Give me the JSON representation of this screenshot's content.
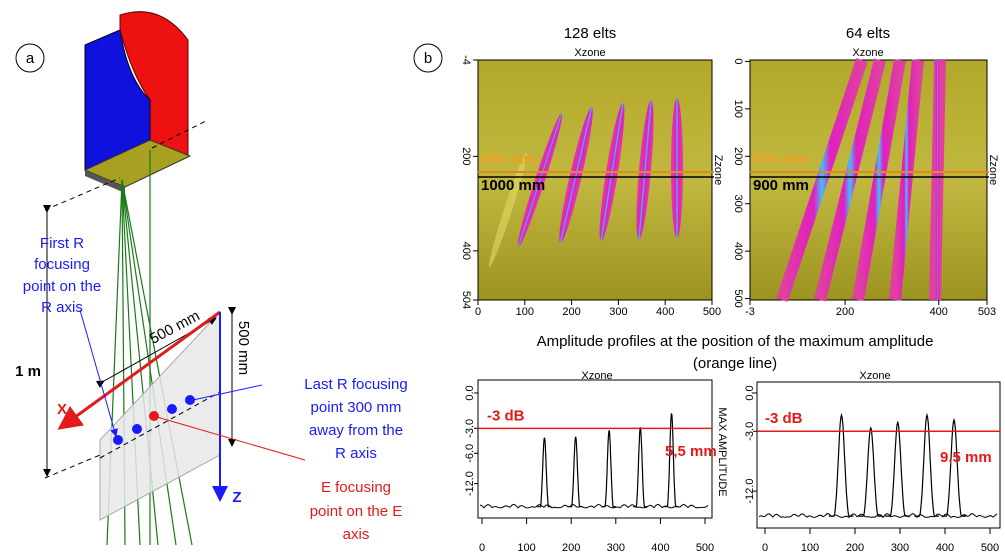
{
  "panel_a": {
    "label": "a",
    "first_r": [
      "First R",
      "focusing",
      "point on the",
      "R axis"
    ],
    "width_label": "500 mm",
    "height_label": "500 mm",
    "distance_label": "1 m",
    "x_axis": "X",
    "z_axis": "Z",
    "last_r": [
      "Last R focusing",
      "point 300 mm",
      "away from the",
      "R axis"
    ],
    "e_point": [
      "E focusing",
      "point on the E",
      "axis"
    ]
  },
  "panel_b": {
    "label": "b",
    "caption": [
      "Amplitude profiles at the position of the maximum amplitude",
      "(orange line)"
    ],
    "heatmaps": [
      {
        "title": "128 elts",
        "x_label": "Xzone",
        "y_label": "Zzone",
        "xlim": [
          0,
          500
        ],
        "xticks": [
          0,
          100,
          200,
          300,
          400,
          500
        ],
        "ylim": [
          -4,
          504
        ],
        "yticks": [
          -4,
          200,
          400,
          504
        ],
        "orange_label": "986 mm",
        "black_label": "1000 mm"
      },
      {
        "title": "64 elts",
        "x_label": "Xzone",
        "y_label": "Zzone",
        "xlim": [
          -3,
          503
        ],
        "xticks": [
          -3,
          200,
          400,
          503
        ],
        "ylim": [
          -3,
          503
        ],
        "yticks": [
          0,
          100,
          200,
          300,
          400,
          500
        ],
        "orange_label": "878 mm",
        "black_label": "900 mm"
      }
    ],
    "profiles": [
      {
        "type": "line",
        "x_label": "Xzone",
        "y_label": "MAX AMPLITUDE",
        "xlim": [
          0,
          500
        ],
        "xticks": [
          0,
          100,
          200,
          300,
          400,
          500
        ],
        "yticks": [
          {
            "value": 0,
            "label": "0.0"
          },
          {
            "value": -3,
            "label": "-3.0"
          },
          {
            "value": -6,
            "label": "-6.0"
          },
          {
            "value": -12,
            "label": "-12.0"
          }
        ],
        "peak_x": [
          140,
          210,
          285,
          355,
          425
        ],
        "peak_db": [
          -4.0,
          -3.9,
          -3.2,
          -2.9,
          -1.6
        ],
        "threshold": {
          "value": -3,
          "label": "-3 dB"
        },
        "width_label": "5,5 mm",
        "color": "#000000"
      },
      {
        "type": "line",
        "x_label": "Xzone",
        "xlim": [
          0,
          500
        ],
        "xticks": [
          0,
          100,
          200,
          300,
          400,
          500
        ],
        "yticks": [
          {
            "value": 0,
            "label": "0.0"
          },
          {
            "value": -3,
            "label": "-3.0"
          },
          {
            "value": -12,
            "label": "-12.0"
          }
        ],
        "peak_x": [
          170,
          235,
          295,
          360,
          420
        ],
        "peak_db": [
          -1.6,
          -2.7,
          -2.2,
          -1.6,
          -2.0
        ],
        "threshold": {
          "value": -3,
          "label": "-3 dB"
        },
        "width_label": "9,5 mm",
        "color": "#000000"
      }
    ]
  }
}
